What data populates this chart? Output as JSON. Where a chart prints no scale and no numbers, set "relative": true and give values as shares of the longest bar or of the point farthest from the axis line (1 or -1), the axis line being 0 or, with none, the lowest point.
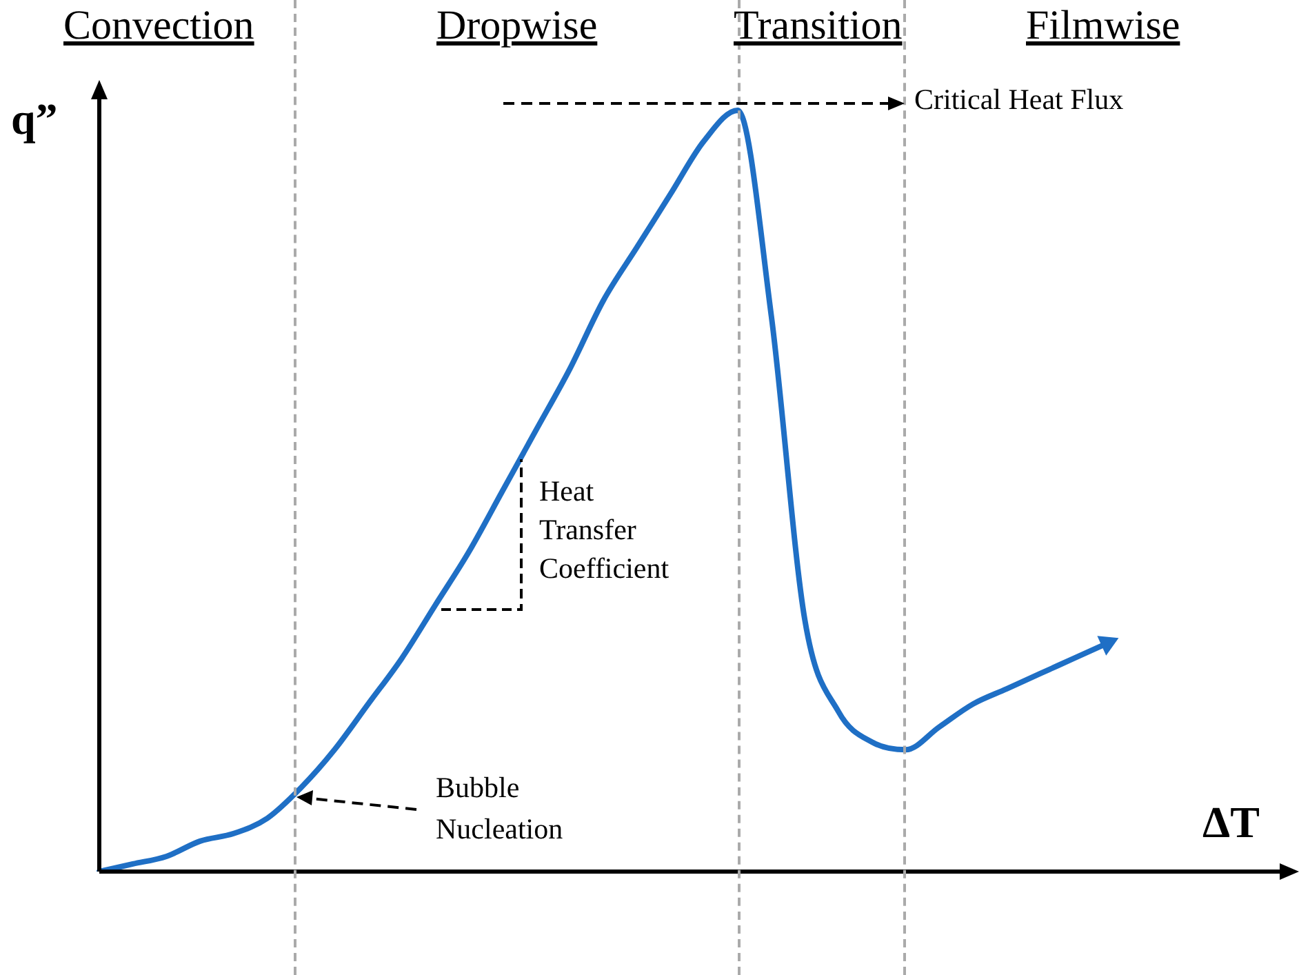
{
  "chart_data": {
    "type": "line",
    "relative": true,
    "xlabel": "ΔT",
    "ylabel": "q”",
    "categories": [
      null,
      null,
      null,
      null,
      null,
      null,
      null,
      null,
      null,
      null,
      null,
      null,
      null,
      null,
      null,
      null,
      null,
      null,
      null,
      null,
      null,
      null,
      null,
      null,
      null,
      null,
      null,
      null,
      null,
      null,
      null
    ],
    "series": [
      {
        "color": "#1f6fc5",
        "values": [
          0,
          0.01,
          0.02,
          0.04,
          0.05,
          0.07,
          0.11,
          0.16,
          0.22,
          0.28,
          0.35,
          0.42,
          0.5,
          0.58,
          0.66,
          0.75,
          0.82,
          0.89,
          0.96,
          1,
          0.73,
          0.33,
          0.21,
          0.17,
          0.16,
          0.19,
          0.22,
          0.24,
          0.26,
          0.28,
          0.3
        ]
      }
    ],
    "marker": "none",
    "line_style": "solid",
    "grid": false,
    "legend": false,
    "annotations": [
      "Convection",
      "Dropwise",
      "Transition",
      "Filmwise",
      "Critical Heat Flux",
      "Heat Transfer Coefficient",
      "Bubble Nucleation"
    ]
  }
}
